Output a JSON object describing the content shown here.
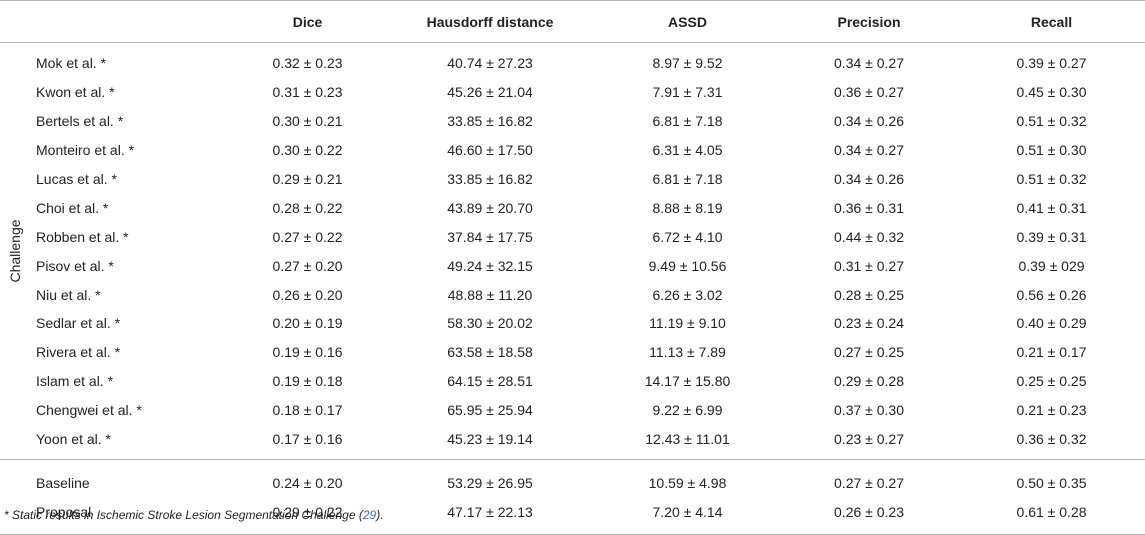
{
  "header": {
    "group": "",
    "method": "",
    "dice": "Dice",
    "hausdorff": "Hausdorff distance",
    "assd": "ASSD",
    "precision": "Precision",
    "recall": "Recall"
  },
  "challenge_group_label": "Challenge",
  "challenge_rows": [
    {
      "method": "Mok et al. *",
      "dice": "0.32 ± 0.23",
      "hausdorff": "40.74 ± 27.23",
      "assd": "8.97 ± 9.52",
      "precision": "0.34 ± 0.27",
      "recall": "0.39 ± 0.27"
    },
    {
      "method": "Kwon et al. *",
      "dice": "0.31 ± 0.23",
      "hausdorff": "45.26 ± 21.04",
      "assd": "7.91 ± 7.31",
      "precision": "0.36 ± 0.27",
      "recall": "0.45 ± 0.30"
    },
    {
      "method": "Bertels et al. *",
      "dice": "0.30 ± 0.21",
      "hausdorff": "33.85 ± 16.82",
      "assd": "6.81 ± 7.18",
      "precision": "0.34 ± 0.26",
      "recall": "0.51 ± 0.32"
    },
    {
      "method": "Monteiro et al. *",
      "dice": "0.30 ± 0.22",
      "hausdorff": "46.60 ± 17.50",
      "assd": "6.31 ± 4.05",
      "precision": "0.34 ± 0.27",
      "recall": "0.51 ± 0.30"
    },
    {
      "method": "Lucas et al. *",
      "dice": "0.29 ± 0.21",
      "hausdorff": "33.85 ± 16.82",
      "assd": "6.81 ± 7.18",
      "precision": "0.34 ± 0.26",
      "recall": "0.51 ± 0.32"
    },
    {
      "method": "Choi et al. *",
      "dice": "0.28 ± 0.22",
      "hausdorff": "43.89 ± 20.70",
      "assd": "8.88 ± 8.19",
      "precision": "0.36 ± 0.31",
      "recall": "0.41 ± 0.31"
    },
    {
      "method": "Robben et al. *",
      "dice": "0.27 ± 0.22",
      "hausdorff": "37.84 ± 17.75",
      "assd": "6.72 ± 4.10",
      "precision": "0.44 ± 0.32",
      "recall": "0.39 ± 0.31"
    },
    {
      "method": "Pisov et al. *",
      "dice": "0.27 ± 0.20",
      "hausdorff": "49.24 ± 32.15",
      "assd": "9.49 ± 10.56",
      "precision": "0.31 ± 0.27",
      "recall": "0.39 ± 029"
    },
    {
      "method": "Niu et al. *",
      "dice": "0.26 ± 0.20",
      "hausdorff": "48.88 ± 11.20",
      "assd": "6.26 ± 3.02",
      "precision": "0.28 ± 0.25",
      "recall": "0.56 ± 0.26"
    },
    {
      "method": "Sedlar et al. *",
      "dice": "0.20 ± 0.19",
      "hausdorff": "58.30 ± 20.02",
      "assd": "11.19 ± 9.10",
      "precision": "0.23 ± 0.24",
      "recall": "0.40 ± 0.29"
    },
    {
      "method": "Rivera et al. *",
      "dice": "0.19 ± 0.16",
      "hausdorff": "63.58 ± 18.58",
      "assd": "11.13 ± 7.89",
      "precision": "0.27 ± 0.25",
      "recall": "0.21 ± 0.17"
    },
    {
      "method": "Islam et al. *",
      "dice": "0.19 ± 0.18",
      "hausdorff": "64.15 ± 28.51",
      "assd": "14.17 ± 15.80",
      "precision": "0.29 ± 0.28",
      "recall": "0.25 ± 0.25"
    },
    {
      "method": "Chengwei et al. *",
      "dice": "0.18 ± 0.17",
      "hausdorff": "65.95 ± 25.94",
      "assd": "9.22 ± 6.99",
      "precision": "0.37 ± 0.30",
      "recall": "0.21 ± 0.23"
    },
    {
      "method": "Yoon et al. *",
      "dice": "0.17 ± 0.16",
      "hausdorff": "45.23 ± 19.14",
      "assd": "12.43 ± 11.01",
      "precision": "0.23 ± 0.27",
      "recall": "0.36 ± 0.32"
    }
  ],
  "our_rows": [
    {
      "method": "Baseline",
      "dice": "0.24 ± 0.20",
      "hausdorff": "53.29 ± 26.95",
      "assd": "10.59 ± 4.98",
      "precision": "0.27 ± 0.27",
      "recall": "0.50 ± 0.35"
    },
    {
      "method": "Proposal",
      "dice": "0.29 ± 0.22",
      "hausdorff": "47.17 ± 22.13",
      "assd": "7.20 ± 4.14",
      "precision": "0.26 ± 0.23",
      "recall": "0.61 ± 0.28"
    }
  ],
  "footnote": {
    "text_before": "* Static results in Ischemic Stroke Lesion Segmentation Challenge (",
    "ref": "29",
    "text_after": ")."
  }
}
